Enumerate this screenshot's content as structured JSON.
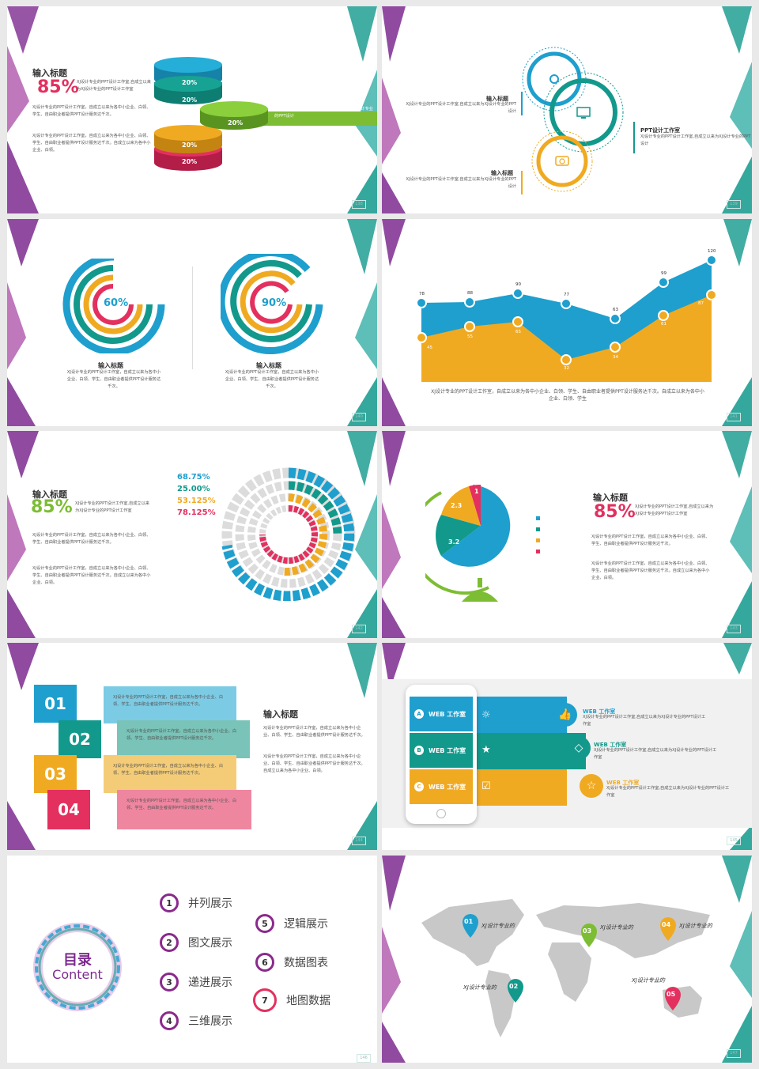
{
  "colors": {
    "purple": "#7d2b8f",
    "teal": "#12998c",
    "blue": "#1e9fce",
    "orange": "#f0aa22",
    "red": "#e3305e",
    "green": "#7dbd33",
    "pink": "#c42a8d"
  },
  "slide1": {
    "title": "输入标题",
    "percent": "85%",
    "desc_short": "XJ设计专业的PPT设计工作室,自成立以来为XJ设计专业的PPT设计工作室",
    "para1": "XJ设计专业的PPT设计工作室，自成立以来为各中小企业、白领、学生、自由职业者提供PPT设计服务达千次。",
    "para2": "XJ设计专业的PPT设计工作室，自成立以来为各中小企业、白领、学生、自由职业者提供PPT设计服务达千次。自成立以来为各中小企业、白领。",
    "disks": [
      "20%",
      "20%",
      "20%",
      "20%",
      "20%"
    ],
    "banner": "XJ设计专业的PPT设计工作室,自成立以来为XJ设计专业的PPT设计",
    "page": "138"
  },
  "slide2": {
    "label1": "输入标题",
    "text1": "XJ设计专业的PPT设计工作室,自成立以来为XJ设计专业的PPT设计",
    "label2": "PPT设计工作室",
    "text2": "XJ设计专业的PPT设计工作室,自成立以来为XJ设计专业的PPT设计",
    "label3": "输入标题",
    "text3": "XJ设计专业的PPT设计工作室,自成立以来为XJ设计专业的PPT设计",
    "icons": [
      "gear-icon",
      "monitor-icon",
      "camera-icon"
    ],
    "page": "139"
  },
  "slide3": {
    "left_pct": "60%",
    "right_pct": "90%",
    "left_title": "输入标题",
    "right_title": "输入标题",
    "left_text": "XJ设计专业的PPT设计工作室，自成立以来为各中小企业、白领、学生、自由职业者提供PPT设计服务达千次。",
    "right_text": "XJ设计专业的PPT设计工作室，自成立以来为各中小企业、白领、学生、自由职业者提供PPT设计服务达千次。",
    "page": "140"
  },
  "slide4": {
    "blue_labels": [
      "78",
      "88",
      "90",
      "77",
      "63",
      "99",
      "120"
    ],
    "orange_labels": [
      "45",
      "55",
      "65",
      "32",
      "34",
      "61",
      "87"
    ],
    "caption": "XJ设计专业的PPT设计工作室，自成立以来为各中小企业、白领、学生、自由职业者提供PPT设计服务达千次。自成立以来为各中小企业、白领、学生",
    "page": "141"
  },
  "slide5": {
    "title": "输入标题",
    "percent": "85%",
    "desc_short": "XJ设计专业的PPT设计工作室,自成立以来为XJ设计专业的PPT设计工作室",
    "para1": "XJ设计专业的PPT设计工作室，自成立以来为各中小企业、白领、学生、自由职业者提供PPT设计服务达千次。",
    "para2": "XJ设计专业的PPT设计工作室，自成立以来为各中小企业、白领、学生、自由职业者提供PPT设计服务达千次。自成立以来为各中小企业、白领。",
    "values": [
      "68.75%",
      "25.00%",
      "53.125%",
      "78.125%"
    ],
    "page": "142"
  },
  "slide6": {
    "title": "输入标题",
    "percent": "85%",
    "desc_short": "XJ设计专业的PPT设计工作室,自成立以来为XJ设计专业的PPT设计工作室",
    "para1": "XJ设计专业的PPT设计工作室，自成立以来为各中小企业、白领、学生、自由职业者提供PPT设计服务达千次。",
    "para2": "XJ设计专业的PPT设计工作室，自成立以来为各中小企业、白领、学生、自由职业者提供PPT设计服务达千次。自成立以来为各中小企业、白领。",
    "pie": [
      "8.2",
      "3.2",
      "2.3",
      "1"
    ],
    "page": "143"
  },
  "slide7": {
    "nums": [
      "01",
      "02",
      "03",
      "04"
    ],
    "box_texts": [
      "XJ设计专业的PPT设计工作室，自成立以来为各中小企业、白领、学生、自由职业者提供PPT设计服务达千次。",
      "XJ设计专业的PPT设计工作室，自成立以来为各中小企业、白领、学生、自由职业者提供PPT设计服务达千次。",
      "XJ设计专业的PPT设计工作室，自成立以来为各中小企业、白领、学生、自由职业者提供PPT设计服务达千次。",
      "XJ设计专业的PPT设计工作室，自成立以来为各中小企业、白领、学生、自由职业者提供PPT设计服务达千次。"
    ],
    "title": "输入标题",
    "para1": "XJ设计专业的PPT设计工作室，自成立以来为各中小企业、白领、学生、自由职业者提供PPT设计服务达千次。",
    "para2": "XJ设计专业的PPT设计工作室，自成立以来为各中小企业、白领、学生、自由职业者提供PPT设计服务达千次。自成立以来为各中小企业、白领。",
    "page": "144"
  },
  "slide8": {
    "tabs": [
      {
        "letter": "A",
        "label": "WEB 工作室"
      },
      {
        "letter": "B",
        "label": "WEB 工作室"
      },
      {
        "letter": "C",
        "label": "WEB 工作室"
      }
    ],
    "items": [
      {
        "title": "WEB 工作室",
        "text": "XJ设计专业的PPT设计工作室,自成立以来为XJ设计专业的PPT设计工作室"
      },
      {
        "title": "WEB 工作室",
        "text": "XJ设计专业的PPT设计工作室,自成立以来为XJ设计专业的PPT设计工作室"
      },
      {
        "title": "WEB 工作室",
        "text": "XJ设计专业的PPT设计工作室,自成立以来为XJ设计专业的PPT设计工作室"
      }
    ],
    "page": "145"
  },
  "slide9": {
    "circle_top": "目录",
    "circle_bottom": "Content",
    "items": [
      {
        "n": "1",
        "label": "并列展示"
      },
      {
        "n": "2",
        "label": "图文展示"
      },
      {
        "n": "3",
        "label": "递进展示"
      },
      {
        "n": "4",
        "label": "三维展示"
      },
      {
        "n": "5",
        "label": "逻辑展示"
      },
      {
        "n": "6",
        "label": "数据图表"
      },
      {
        "n": "7",
        "label": "地图数据"
      }
    ],
    "page": "146"
  },
  "slide10": {
    "pins": [
      {
        "n": "01",
        "label": "XJ设计专业的"
      },
      {
        "n": "02",
        "label": "XJ设计专业的"
      },
      {
        "n": "03",
        "label": "XJ设计专业的"
      },
      {
        "n": "04",
        "label": "XJ设计专业的"
      },
      {
        "n": "05",
        "label": "XJ设计专业的"
      }
    ],
    "page": "147"
  }
}
